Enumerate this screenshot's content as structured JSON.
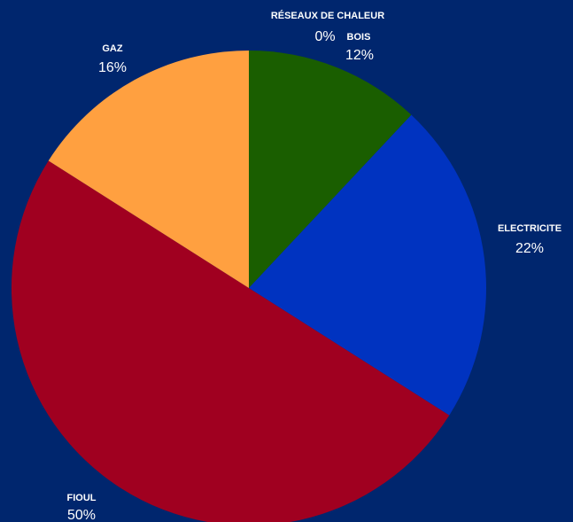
{
  "chart_data": {
    "type": "pie",
    "categories": [
      "RÉSEAUX DE  CHALEUR",
      "BOIS",
      "ELECTRICITE",
      "FIOUL",
      "GAZ"
    ],
    "values": [
      0,
      12,
      22,
      50,
      16
    ],
    "value_labels": [
      "0%",
      "12%",
      "22%",
      "50%",
      "16%"
    ],
    "colors": [
      "#c8c8c8",
      "#1a5e00",
      "#0033c0",
      "#a00020",
      "#ffa040"
    ]
  }
}
